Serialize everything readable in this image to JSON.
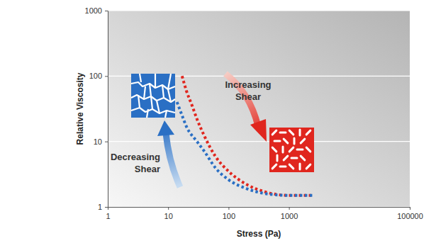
{
  "chart_data": {
    "type": "line",
    "x_label": "Stress (Pa)",
    "y_label": "Relative Viscosity",
    "log": true,
    "grid": true,
    "xlim": [
      1,
      100000
    ],
    "ylim": [
      1,
      1000
    ],
    "xticks": [
      1,
      10,
      100,
      1000,
      100000
    ],
    "yticks": [
      1,
      10,
      100,
      1000
    ],
    "series": [
      {
        "color": "#e0261e",
        "line_style": "dotted",
        "x": [
          17,
          20,
          25,
          30,
          40,
          60,
          100,
          200,
          400,
          1000,
          2500
        ],
        "values": [
          100,
          60,
          35,
          22,
          12,
          6,
          3.5,
          2.2,
          1.7,
          1.5,
          1.5
        ]
      },
      {
        "color": "#2a6fc4",
        "line_style": "dotted",
        "x": [
          14,
          17,
          20,
          30,
          40,
          60,
          100,
          200,
          400,
          1000,
          2500
        ],
        "values": [
          40,
          25,
          17,
          10,
          7,
          4,
          2.6,
          1.9,
          1.6,
          1.5,
          1.5
        ]
      }
    ],
    "annotations": [
      {
        "text": "Increasing Shear"
      },
      {
        "text": "Decreasing Shear"
      }
    ]
  }
}
